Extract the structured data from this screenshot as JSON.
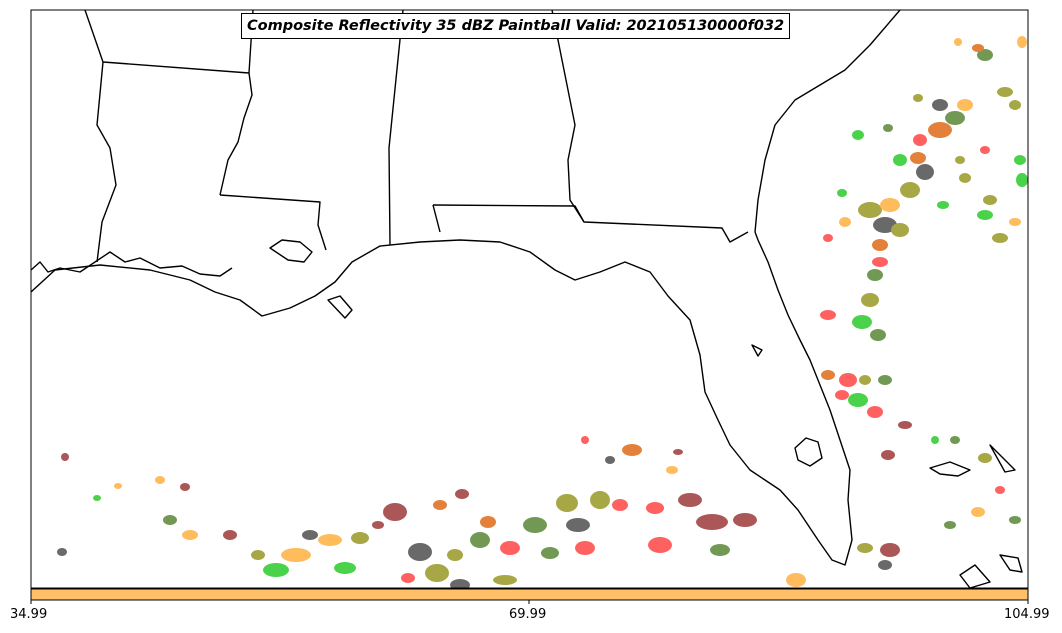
{
  "title": "Composite Reflectivity 35 dBZ Paintball Valid: 202105130000f032",
  "colorbar": {
    "color": "#FFC068",
    "ticks": [
      "34.99",
      "69.99",
      "104.99"
    ]
  },
  "colors": {
    "coast": "#000000",
    "paint_orange": "#FFB347",
    "paint_red": "#FF4C4C",
    "paint_green": "#33CC33",
    "paint_olive": "#9C9C2C",
    "paint_darkgray": "#555555",
    "paint_brown": "#A04040",
    "paint_moss": "#5E8C3C",
    "paint_dark_orange": "#E07020"
  }
}
